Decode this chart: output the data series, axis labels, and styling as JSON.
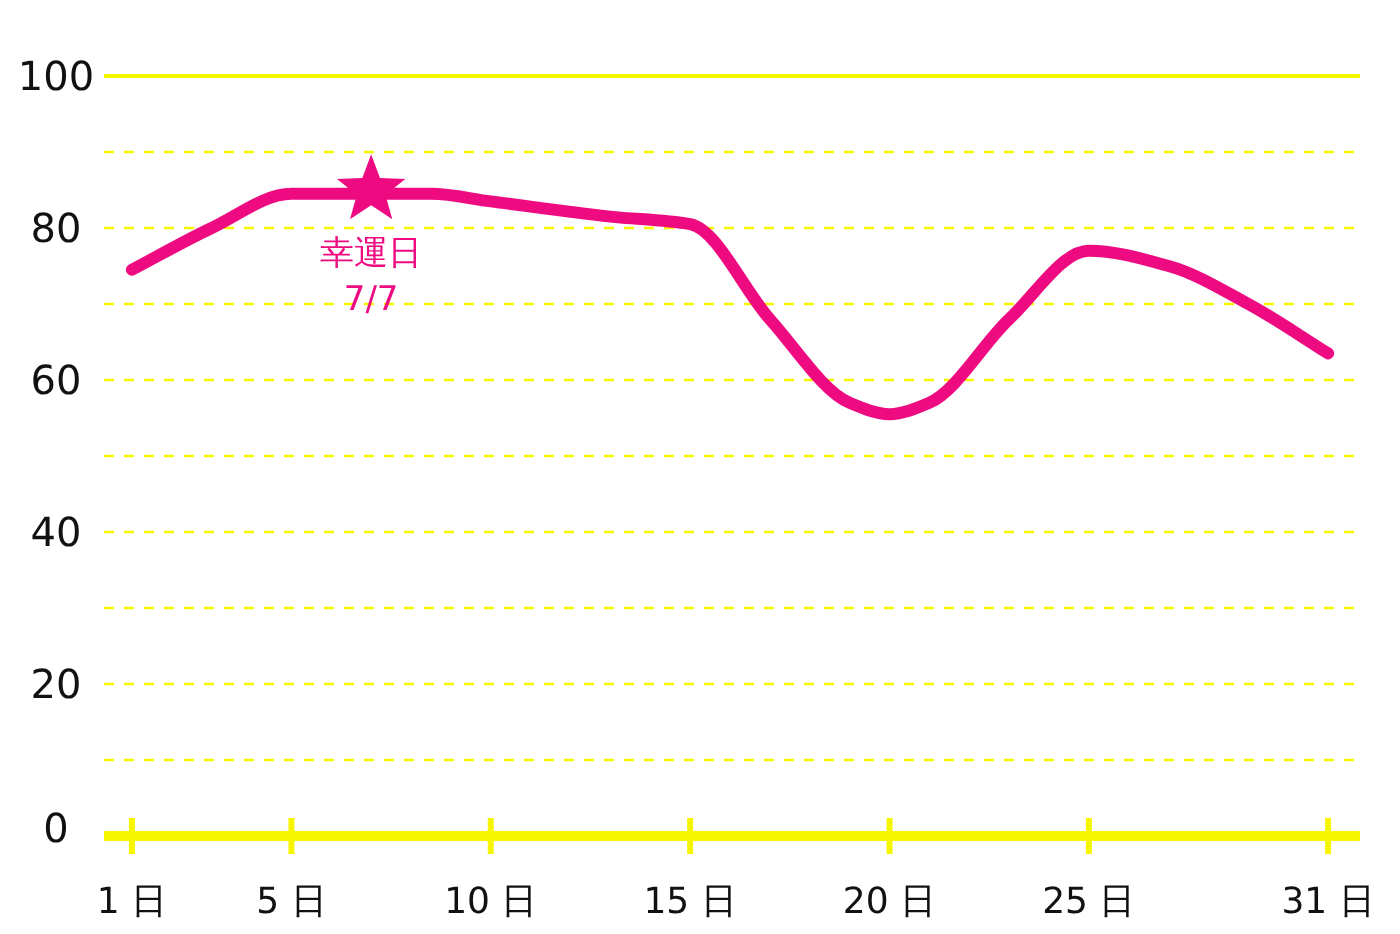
{
  "chart_data": {
    "type": "line",
    "x": [
      1,
      3,
      5,
      8.5,
      10,
      13,
      15,
      17,
      19,
      20,
      21,
      23,
      25,
      27,
      29,
      31
    ],
    "series": [
      {
        "color": "#ee0a80",
        "values": [
          74.5,
          80,
          84.5,
          84.5,
          83.5,
          81.5,
          80.5,
          68,
          57,
          55.5,
          57,
          68,
          77,
          75,
          70,
          63.5
        ]
      }
    ],
    "xlim": [
      0.3,
      31.8
    ],
    "xticks": [
      {
        "value": 1,
        "label": "1 日"
      },
      {
        "value": 5,
        "label": "5 日"
      },
      {
        "value": 10,
        "label": "10 日"
      },
      {
        "value": 15,
        "label": "15 日"
      },
      {
        "value": 20,
        "label": "20 日"
      },
      {
        "value": 25,
        "label": "25 日"
      },
      {
        "value": 31,
        "label": "31 日"
      }
    ],
    "ylim": [
      0,
      100
    ],
    "yticks": [
      0,
      {
        "value": 10,
        "label": null
      },
      20,
      {
        "value": 30,
        "label": null
      },
      40,
      {
        "value": 50,
        "label": null
      },
      60,
      {
        "value": 70,
        "label": null
      },
      80,
      {
        "value": 90,
        "label": null
      },
      100
    ],
    "grid": "y",
    "marker": "none",
    "line_style": "solid",
    "annotations": [
      {
        "text": "幸運日\n7/7",
        "x": 7,
        "y": 85.5
      }
    ]
  }
}
